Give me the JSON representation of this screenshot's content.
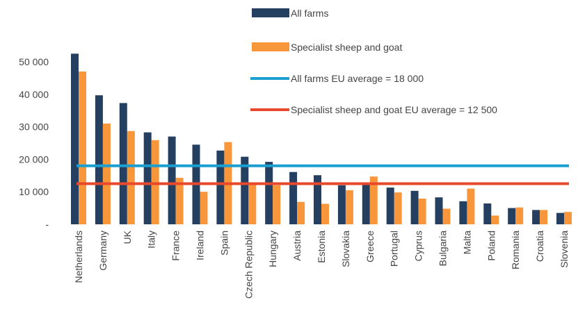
{
  "chart_data": {
    "type": "bar",
    "categories": [
      "Netherlands",
      "Germany",
      "UK",
      "Italy",
      "France",
      "Ireland",
      "Spain",
      "Czech Republic",
      "Hungary",
      "Austria",
      "Estonia",
      "Slovakia",
      "Greece",
      "Portugal",
      "Cyprus",
      "Bulgaria",
      "Malta",
      "Poland",
      "Romania",
      "Croatia",
      "Slovenia"
    ],
    "series": [
      {
        "name": "All farms",
        "color": "#243f60",
        "values": [
          52500,
          39700,
          37300,
          28300,
          27000,
          24500,
          22700,
          20800,
          19200,
          16100,
          15100,
          12000,
          12200,
          11300,
          10300,
          8300,
          7100,
          6400,
          5000,
          4400,
          3500
        ]
      },
      {
        "name": "Specialist sheep and goat",
        "color": "#f7963b",
        "values": [
          47000,
          31000,
          28700,
          25900,
          14300,
          10000,
          25300,
          12500,
          12000,
          6900,
          6300,
          10500,
          14700,
          9800,
          7900,
          4800,
          11000,
          2700,
          5200,
          4400,
          3800
        ]
      }
    ],
    "reference_lines": [
      {
        "name": "All farms EU average = 18 000",
        "value": 18000,
        "color": "#1a9fd0"
      },
      {
        "name": "Specialist sheep and goat EU average = 12 500",
        "value": 12500,
        "color": "#e8482b"
      }
    ],
    "y_ticks": [
      {
        "value": 0,
        "label": "-"
      },
      {
        "value": 10000,
        "label": "10 000"
      },
      {
        "value": 20000,
        "label": "20 000"
      },
      {
        "value": 30000,
        "label": "30 000"
      },
      {
        "value": 40000,
        "label": "40 000"
      },
      {
        "value": 50000,
        "label": "50 000"
      }
    ],
    "ylim": [
      0,
      55000
    ],
    "legend_position": "top",
    "grid": false,
    "title": "",
    "xlabel": "",
    "ylabel": ""
  }
}
